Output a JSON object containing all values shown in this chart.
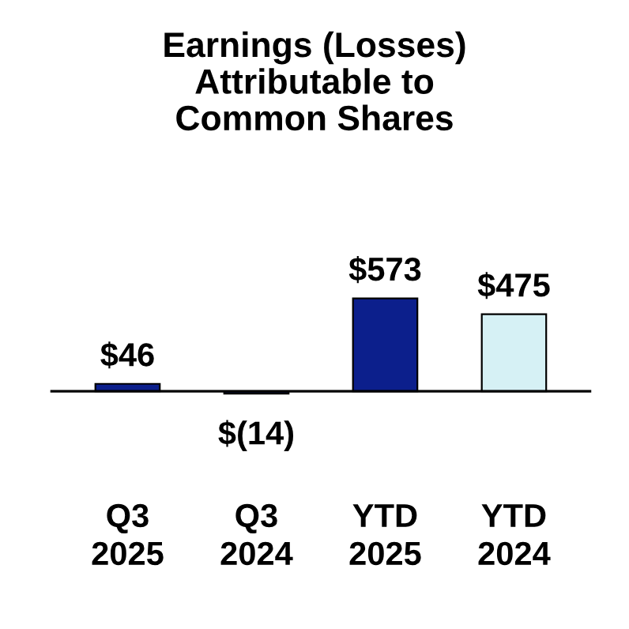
{
  "chart_data": {
    "type": "bar",
    "title": "Earnings (Losses)\nAttributable to\nCommon Shares",
    "categories": [
      "Q3\n2025",
      "Q3\n2024",
      "YTD\n2025",
      "YTD\n2024"
    ],
    "values": [
      46,
      -14,
      573,
      475
    ],
    "colors": [
      "#0c1f8c",
      "#0c1f8c",
      "#0c1f8c",
      "#d6f1f5"
    ],
    "value_labels": [
      "$46",
      "$(14)",
      "$573",
      "$475"
    ]
  }
}
